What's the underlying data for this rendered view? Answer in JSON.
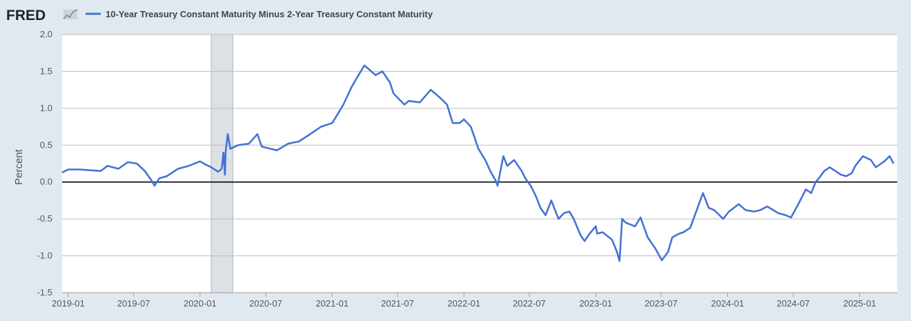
{
  "header": {
    "logo": "FRED",
    "logo_icon": "line-chart-icon"
  },
  "chart_data": {
    "type": "line",
    "series": [
      {
        "name": "10-Year Treasury Constant Maturity Minus 2-Year Treasury Constant Maturity",
        "color": "#4572d6",
        "points": [
          [
            "2018-12-15",
            0.13
          ],
          [
            "2019-01-01",
            0.17
          ],
          [
            "2019-02-01",
            0.17
          ],
          [
            "2019-03-01",
            0.16
          ],
          [
            "2019-04-01",
            0.15
          ],
          [
            "2019-04-20",
            0.22
          ],
          [
            "2019-05-20",
            0.18
          ],
          [
            "2019-06-15",
            0.27
          ],
          [
            "2019-07-10",
            0.25
          ],
          [
            "2019-08-01",
            0.15
          ],
          [
            "2019-08-20",
            0.02
          ],
          [
            "2019-08-28",
            -0.05
          ],
          [
            "2019-09-10",
            0.05
          ],
          [
            "2019-10-01",
            0.08
          ],
          [
            "2019-11-01",
            0.18
          ],
          [
            "2019-12-01",
            0.22
          ],
          [
            "2020-01-01",
            0.28
          ],
          [
            "2020-01-15",
            0.24
          ],
          [
            "2020-02-01",
            0.2
          ],
          [
            "2020-02-20",
            0.14
          ],
          [
            "2020-03-01",
            0.18
          ],
          [
            "2020-03-06",
            0.4
          ],
          [
            "2020-03-10",
            0.1
          ],
          [
            "2020-03-12",
            0.42
          ],
          [
            "2020-03-18",
            0.65
          ],
          [
            "2020-03-25",
            0.45
          ],
          [
            "2020-04-15",
            0.5
          ],
          [
            "2020-05-15",
            0.52
          ],
          [
            "2020-06-08",
            0.65
          ],
          [
            "2020-06-20",
            0.48
          ],
          [
            "2020-08-01",
            0.43
          ],
          [
            "2020-09-01",
            0.52
          ],
          [
            "2020-10-01",
            0.55
          ],
          [
            "2020-11-01",
            0.65
          ],
          [
            "2020-12-01",
            0.75
          ],
          [
            "2021-01-01",
            0.8
          ],
          [
            "2021-01-20",
            0.95
          ],
          [
            "2021-02-01",
            1.05
          ],
          [
            "2021-02-25",
            1.3
          ],
          [
            "2021-03-15",
            1.45
          ],
          [
            "2021-03-31",
            1.58
          ],
          [
            "2021-04-15",
            1.52
          ],
          [
            "2021-05-01",
            1.45
          ],
          [
            "2021-05-20",
            1.5
          ],
          [
            "2021-06-10",
            1.35
          ],
          [
            "2021-06-20",
            1.2
          ],
          [
            "2021-07-20",
            1.05
          ],
          [
            "2021-08-01",
            1.1
          ],
          [
            "2021-09-01",
            1.08
          ],
          [
            "2021-10-01",
            1.25
          ],
          [
            "2021-10-25",
            1.15
          ],
          [
            "2021-11-15",
            1.05
          ],
          [
            "2021-12-01",
            0.8
          ],
          [
            "2021-12-20",
            0.8
          ],
          [
            "2022-01-01",
            0.85
          ],
          [
            "2022-01-20",
            0.75
          ],
          [
            "2022-02-10",
            0.45
          ],
          [
            "2022-03-01",
            0.3
          ],
          [
            "2022-03-15",
            0.15
          ],
          [
            "2022-04-01",
            0.0
          ],
          [
            "2022-04-04",
            -0.05
          ],
          [
            "2022-04-20",
            0.35
          ],
          [
            "2022-05-01",
            0.22
          ],
          [
            "2022-05-20",
            0.3
          ],
          [
            "2022-06-10",
            0.15
          ],
          [
            "2022-06-20",
            0.05
          ],
          [
            "2022-07-05",
            -0.05
          ],
          [
            "2022-07-20",
            -0.2
          ],
          [
            "2022-08-01",
            -0.35
          ],
          [
            "2022-08-15",
            -0.45
          ],
          [
            "2022-08-31",
            -0.25
          ],
          [
            "2022-09-20",
            -0.5
          ],
          [
            "2022-10-05",
            -0.42
          ],
          [
            "2022-10-20",
            -0.4
          ],
          [
            "2022-11-01",
            -0.5
          ],
          [
            "2022-11-20",
            -0.72
          ],
          [
            "2022-12-01",
            -0.8
          ],
          [
            "2022-12-15",
            -0.7
          ],
          [
            "2023-01-01",
            -0.6
          ],
          [
            "2023-01-05",
            -0.7
          ],
          [
            "2023-01-20",
            -0.68
          ],
          [
            "2023-02-15",
            -0.78
          ],
          [
            "2023-03-01",
            -0.95
          ],
          [
            "2023-03-08",
            -1.07
          ],
          [
            "2023-03-15",
            -0.5
          ],
          [
            "2023-03-25",
            -0.55
          ],
          [
            "2023-04-20",
            -0.6
          ],
          [
            "2023-05-05",
            -0.48
          ],
          [
            "2023-05-25",
            -0.75
          ],
          [
            "2023-06-15",
            -0.9
          ],
          [
            "2023-07-03",
            -1.06
          ],
          [
            "2023-07-20",
            -0.95
          ],
          [
            "2023-08-01",
            -0.75
          ],
          [
            "2023-08-20",
            -0.7
          ],
          [
            "2023-09-01",
            -0.68
          ],
          [
            "2023-09-20",
            -0.62
          ],
          [
            "2023-10-10",
            -0.35
          ],
          [
            "2023-10-25",
            -0.15
          ],
          [
            "2023-11-10",
            -0.35
          ],
          [
            "2023-11-25",
            -0.38
          ],
          [
            "2023-12-20",
            -0.5
          ],
          [
            "2024-01-05",
            -0.4
          ],
          [
            "2024-02-01",
            -0.3
          ],
          [
            "2024-02-20",
            -0.38
          ],
          [
            "2024-03-15",
            -0.4
          ],
          [
            "2024-04-01",
            -0.38
          ],
          [
            "2024-04-20",
            -0.33
          ],
          [
            "2024-05-20",
            -0.42
          ],
          [
            "2024-06-10",
            -0.45
          ],
          [
            "2024-06-25",
            -0.48
          ],
          [
            "2024-07-15",
            -0.3
          ],
          [
            "2024-08-05",
            -0.1
          ],
          [
            "2024-08-20",
            -0.15
          ],
          [
            "2024-09-01",
            0.0
          ],
          [
            "2024-09-10",
            0.05
          ],
          [
            "2024-09-25",
            0.15
          ],
          [
            "2024-10-10",
            0.2
          ],
          [
            "2024-11-10",
            0.1
          ],
          [
            "2024-11-25",
            0.08
          ],
          [
            "2024-12-10",
            0.12
          ],
          [
            "2024-12-20",
            0.22
          ],
          [
            "2025-01-10",
            0.35
          ],
          [
            "2025-02-01",
            0.3
          ],
          [
            "2025-02-15",
            0.2
          ],
          [
            "2025-03-10",
            0.28
          ],
          [
            "2025-03-25",
            0.35
          ],
          [
            "2025-04-05",
            0.25
          ]
        ]
      }
    ],
    "ylabel": "Percent",
    "ylim": [
      -1.5,
      2.0
    ],
    "yticks": [
      "2.0",
      "1.5",
      "1.0",
      "0.5",
      "0.0",
      "-0.5",
      "-1.0",
      "-1.5"
    ],
    "ytick_values": [
      2.0,
      1.5,
      1.0,
      0.5,
      0.0,
      -0.5,
      -1.0,
      -1.5
    ],
    "xlim": [
      "2018-12-15",
      "2025-04-15"
    ],
    "xticks": [
      "2019-01",
      "2019-07",
      "2020-01",
      "2020-07",
      "2021-01",
      "2021-07",
      "2022-01",
      "2022-07",
      "2023-01",
      "2023-07",
      "2024-01",
      "2024-07",
      "2025-01"
    ],
    "recession": {
      "start": "2020-02-01",
      "end": "2020-04-01"
    },
    "reference_line": 0,
    "grid": true,
    "legend_position": "top-left",
    "colors": {
      "background": "#e1e9f0",
      "plot_background": "#ffffff",
      "grid": "#bdbdbd",
      "recession": "#dde1e6",
      "zero_line": "#000000"
    }
  }
}
